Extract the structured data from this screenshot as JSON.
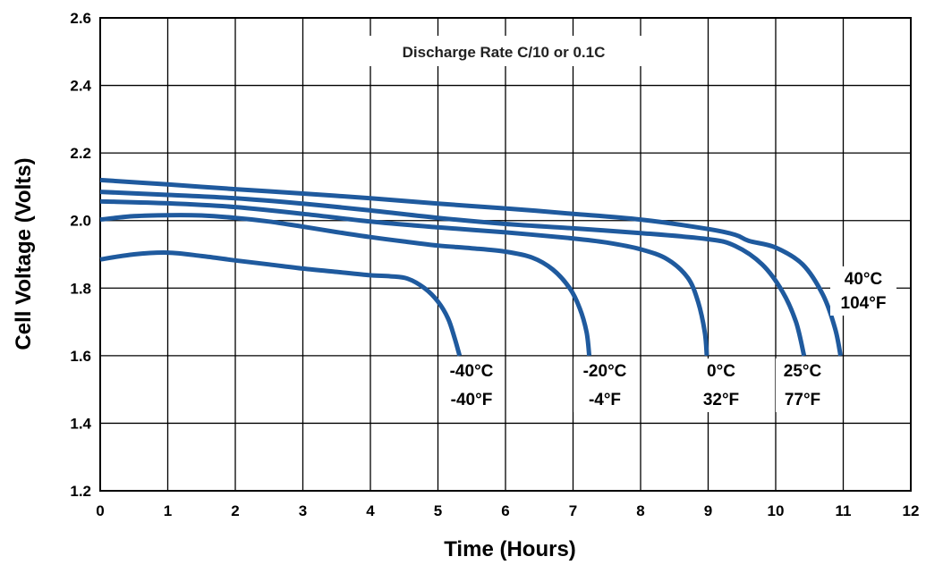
{
  "chart_data": {
    "type": "line",
    "title": "Discharge Rate C/10 or 0.1C",
    "xlabel": "Time (Hours)",
    "ylabel": "Cell Voltage (Volts)",
    "xlim": [
      0,
      12
    ],
    "ylim": [
      1.2,
      2.6
    ],
    "x_ticks": [
      "0",
      "1",
      "2",
      "3",
      "4",
      "5",
      "6",
      "7",
      "8",
      "9",
      "10",
      "11",
      "12"
    ],
    "y_ticks": [
      "1.2",
      "1.4",
      "1.6",
      "1.8",
      "2.0",
      "2.2",
      "2.4",
      "2.6"
    ],
    "grid": true,
    "line_color": "#1f5a9e",
    "series": [
      {
        "name": "-40°C / -40°F",
        "label_lines": [
          "-40°C",
          "-40°F"
        ],
        "points": [
          [
            0,
            1.885
          ],
          [
            0.5,
            1.9
          ],
          [
            1,
            1.905
          ],
          [
            1.5,
            1.895
          ],
          [
            2,
            1.882
          ],
          [
            2.5,
            1.87
          ],
          [
            3,
            1.858
          ],
          [
            3.5,
            1.848
          ],
          [
            4,
            1.838
          ],
          [
            4.3,
            1.835
          ],
          [
            4.55,
            1.828
          ],
          [
            4.8,
            1.8
          ],
          [
            5,
            1.76
          ],
          [
            5.15,
            1.71
          ],
          [
            5.25,
            1.65
          ],
          [
            5.32,
            1.6
          ]
        ]
      },
      {
        "name": "-20°C / -4°F",
        "label_lines": [
          "-20°C",
          "-4°F"
        ],
        "points": [
          [
            0,
            2.003
          ],
          [
            0.5,
            2.013
          ],
          [
            1,
            2.016
          ],
          [
            1.5,
            2.015
          ],
          [
            2,
            2.008
          ],
          [
            2.5,
            1.997
          ],
          [
            3,
            1.982
          ],
          [
            3.5,
            1.966
          ],
          [
            4,
            1.951
          ],
          [
            4.5,
            1.938
          ],
          [
            5,
            1.926
          ],
          [
            5.5,
            1.918
          ],
          [
            6,
            1.908
          ],
          [
            6.4,
            1.89
          ],
          [
            6.7,
            1.855
          ],
          [
            6.95,
            1.8
          ],
          [
            7.1,
            1.74
          ],
          [
            7.2,
            1.67
          ],
          [
            7.24,
            1.6
          ]
        ]
      },
      {
        "name": "0°C / 32°F",
        "label_lines": [
          "0°C",
          "32°F"
        ],
        "points": [
          [
            0,
            2.057
          ],
          [
            1,
            2.051
          ],
          [
            2,
            2.04
          ],
          [
            3,
            2.02
          ],
          [
            4,
            1.997
          ],
          [
            5,
            1.98
          ],
          [
            6,
            1.965
          ],
          [
            7,
            1.947
          ],
          [
            7.5,
            1.935
          ],
          [
            8,
            1.915
          ],
          [
            8.4,
            1.885
          ],
          [
            8.7,
            1.83
          ],
          [
            8.85,
            1.76
          ],
          [
            8.95,
            1.67
          ],
          [
            8.98,
            1.6
          ]
        ]
      },
      {
        "name": "25°C / 77°F",
        "label_lines": [
          "25°C",
          "77°F"
        ],
        "points": [
          [
            0,
            2.085
          ],
          [
            1,
            2.076
          ],
          [
            2,
            2.066
          ],
          [
            3,
            2.05
          ],
          [
            4,
            2.03
          ],
          [
            5,
            2.008
          ],
          [
            6,
            1.99
          ],
          [
            7,
            1.977
          ],
          [
            8,
            1.963
          ],
          [
            9,
            1.945
          ],
          [
            9.4,
            1.925
          ],
          [
            9.8,
            1.87
          ],
          [
            10.1,
            1.79
          ],
          [
            10.3,
            1.7
          ],
          [
            10.42,
            1.6
          ]
        ]
      },
      {
        "name": "40°C / 104°F",
        "label_lines": [
          "40°C",
          "104°F"
        ],
        "points": [
          [
            0,
            2.12
          ],
          [
            1,
            2.107
          ],
          [
            2,
            2.093
          ],
          [
            3,
            2.08
          ],
          [
            4,
            2.066
          ],
          [
            5,
            2.05
          ],
          [
            6,
            2.036
          ],
          [
            7,
            2.02
          ],
          [
            8,
            2.003
          ],
          [
            9,
            1.975
          ],
          [
            9.4,
            1.958
          ],
          [
            9.6,
            1.94
          ],
          [
            10,
            1.92
          ],
          [
            10.4,
            1.87
          ],
          [
            10.7,
            1.78
          ],
          [
            10.88,
            1.68
          ],
          [
            10.96,
            1.6
          ]
        ]
      }
    ]
  }
}
